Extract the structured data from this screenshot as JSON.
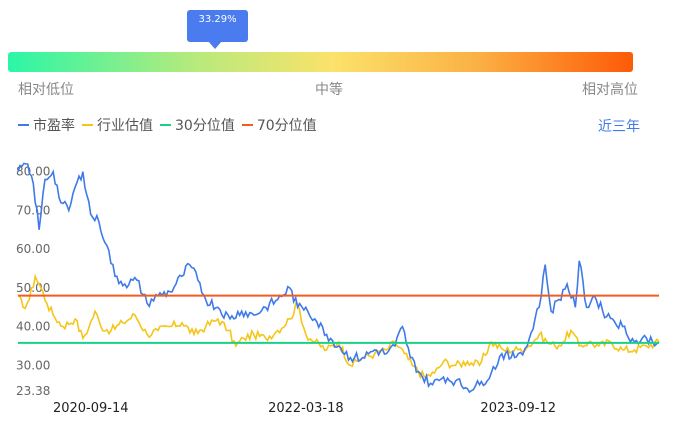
{
  "percentile_indicator": {
    "value_label": "33.29%",
    "value": 0.3329,
    "scale_labels": {
      "low": "相对低位",
      "mid": "中等",
      "high": "相对高位"
    },
    "gradient_colors": [
      "#2bf6a7",
      "#b7ea7c",
      "#fbe26b",
      "#fbb144",
      "#fd5a06"
    ]
  },
  "range_button_label": "近三年",
  "chart_data": {
    "type": "line",
    "series": [
      {
        "name": "市盈率",
        "color": "#3f7ae8"
      },
      {
        "name": "行业估值",
        "color": "#f5c518"
      },
      {
        "name": "30分位值",
        "color": "#19d186"
      },
      {
        "name": "70分位值",
        "color": "#f55a1e"
      }
    ],
    "x_tick_labels": [
      "2020-09-14",
      "2022-03-18",
      "2023-09-12"
    ],
    "x_range": [
      "2020-03-12",
      "2024-09-06"
    ],
    "y_tick_labels": [
      "80.00",
      "70.00",
      "60.00",
      "50.00",
      "40.00",
      "30.00",
      "23.38"
    ],
    "ylim": [
      23.38,
      82
    ],
    "pe_points": [
      [
        "2020-03-12",
        80
      ],
      [
        "2020-04-01",
        82
      ],
      [
        "2020-04-20",
        77
      ],
      [
        "2020-05-05",
        65
      ],
      [
        "2020-05-20",
        78
      ],
      [
        "2020-06-10",
        80
      ],
      [
        "2020-06-30",
        72
      ],
      [
        "2020-07-20",
        70
      ],
      [
        "2020-08-05",
        76
      ],
      [
        "2020-08-25",
        80
      ],
      [
        "2020-09-14",
        69
      ],
      [
        "2020-10-05",
        67
      ],
      [
        "2020-10-25",
        61
      ],
      [
        "2020-11-15",
        53
      ],
      [
        "2020-12-10",
        51
      ],
      [
        "2021-01-10",
        52
      ],
      [
        "2021-02-05",
        46
      ],
      [
        "2021-03-05",
        48
      ],
      [
        "2021-04-05",
        49
      ],
      [
        "2021-05-05",
        53
      ],
      [
        "2021-05-25",
        56
      ],
      [
        "2021-06-15",
        52
      ],
      [
        "2021-07-05",
        47
      ],
      [
        "2021-08-05",
        45
      ],
      [
        "2021-09-05",
        42
      ],
      [
        "2021-10-05",
        44
      ],
      [
        "2021-11-05",
        43
      ],
      [
        "2021-12-05",
        45
      ],
      [
        "2022-01-05",
        47
      ],
      [
        "2022-02-05",
        50
      ],
      [
        "2022-02-25",
        45
      ],
      [
        "2022-03-18",
        45
      ],
      [
        "2022-04-10",
        42
      ],
      [
        "2022-05-10",
        38
      ],
      [
        "2022-06-10",
        35
      ],
      [
        "2022-07-10",
        32
      ],
      [
        "2022-08-10",
        32
      ],
      [
        "2022-09-10",
        34
      ],
      [
        "2022-10-10",
        33
      ],
      [
        "2022-11-01",
        35
      ],
      [
        "2022-11-20",
        40
      ],
      [
        "2022-12-10",
        32
      ],
      [
        "2023-01-10",
        27
      ],
      [
        "2023-02-05",
        25
      ],
      [
        "2023-03-05",
        27
      ],
      [
        "2023-04-05",
        26
      ],
      [
        "2023-05-05",
        24
      ],
      [
        "2023-06-05",
        25
      ],
      [
        "2023-07-05",
        28
      ],
      [
        "2023-08-01",
        33
      ],
      [
        "2023-08-25",
        32
      ],
      [
        "2023-09-12",
        33
      ],
      [
        "2023-10-05",
        35
      ],
      [
        "2023-10-25",
        42
      ],
      [
        "2023-11-10",
        48
      ],
      [
        "2023-11-20",
        56
      ],
      [
        "2023-12-05",
        44
      ],
      [
        "2023-12-25",
        47
      ],
      [
        "2024-01-15",
        51
      ],
      [
        "2024-02-05",
        45
      ],
      [
        "2024-02-15",
        57
      ],
      [
        "2024-03-05",
        45
      ],
      [
        "2024-03-25",
        48
      ],
      [
        "2024-04-15",
        44
      ],
      [
        "2024-05-10",
        42
      ],
      [
        "2024-06-05",
        40
      ],
      [
        "2024-07-05",
        36
      ],
      [
        "2024-08-05",
        37
      ],
      [
        "2024-09-06",
        36
      ]
    ],
    "industry_points": [
      [
        "2020-03-12",
        48
      ],
      [
        "2020-03-25",
        45
      ],
      [
        "2020-04-10",
        47
      ],
      [
        "2020-04-25",
        53
      ],
      [
        "2020-05-10",
        50
      ],
      [
        "2020-05-25",
        46
      ],
      [
        "2020-06-10",
        43
      ],
      [
        "2020-07-05",
        40
      ],
      [
        "2020-08-05",
        42
      ],
      [
        "2020-08-25",
        37
      ],
      [
        "2020-09-10",
        40
      ],
      [
        "2020-09-25",
        44
      ],
      [
        "2020-10-10",
        40
      ],
      [
        "2020-11-05",
        39
      ],
      [
        "2020-12-05",
        41
      ],
      [
        "2021-01-05",
        43
      ],
      [
        "2021-02-05",
        38
      ],
      [
        "2021-03-05",
        39
      ],
      [
        "2021-04-05",
        40
      ],
      [
        "2021-05-05",
        41
      ],
      [
        "2021-06-05",
        38
      ],
      [
        "2021-07-05",
        40
      ],
      [
        "2021-08-05",
        42
      ],
      [
        "2021-09-01",
        39
      ],
      [
        "2021-09-20",
        35
      ],
      [
        "2021-10-10",
        37
      ],
      [
        "2021-11-05",
        38
      ],
      [
        "2021-12-05",
        37
      ],
      [
        "2022-01-05",
        39
      ],
      [
        "2022-02-05",
        42
      ],
      [
        "2022-02-25",
        46
      ],
      [
        "2022-03-18",
        38
      ],
      [
        "2022-04-10",
        36
      ],
      [
        "2022-05-10",
        34
      ],
      [
        "2022-06-10",
        36
      ],
      [
        "2022-07-10",
        30
      ],
      [
        "2022-08-10",
        32
      ],
      [
        "2022-09-10",
        33
      ],
      [
        "2022-10-10",
        34
      ],
      [
        "2022-11-01",
        36
      ],
      [
        "2022-11-25",
        33
      ],
      [
        "2022-12-15",
        30
      ],
      [
        "2023-01-15",
        27
      ],
      [
        "2023-02-10",
        28
      ],
      [
        "2023-03-05",
        31
      ],
      [
        "2023-04-05",
        30
      ],
      [
        "2023-05-05",
        31
      ],
      [
        "2023-06-05",
        30
      ],
      [
        "2023-07-05",
        36
      ],
      [
        "2023-08-05",
        34
      ],
      [
        "2023-09-12",
        34
      ],
      [
        "2023-10-10",
        35
      ],
      [
        "2023-11-05",
        38
      ],
      [
        "2023-11-25",
        36
      ],
      [
        "2023-12-15",
        35
      ],
      [
        "2024-01-05",
        36
      ],
      [
        "2024-01-25",
        39
      ],
      [
        "2024-02-15",
        35
      ],
      [
        "2024-03-10",
        36
      ],
      [
        "2024-04-05",
        35
      ],
      [
        "2024-05-05",
        36
      ],
      [
        "2024-06-05",
        34
      ],
      [
        "2024-07-05",
        34
      ],
      [
        "2024-08-05",
        35
      ],
      [
        "2024-09-06",
        36
      ]
    ],
    "percentile_30_value": 35.8,
    "percentile_70_value": 48.0,
    "grid": false,
    "legend_position": "top-left"
  }
}
